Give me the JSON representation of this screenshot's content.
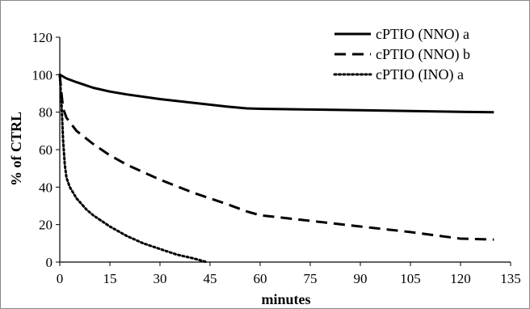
{
  "chart_data": {
    "type": "line",
    "title": "",
    "xlabel": "minutes",
    "ylabel": "% of CTRL",
    "xlim": [
      0,
      135
    ],
    "ylim": [
      0,
      120
    ],
    "xticks": [
      0,
      15,
      30,
      45,
      60,
      75,
      90,
      105,
      120,
      135
    ],
    "yticks": [
      0,
      20,
      40,
      60,
      80,
      100,
      120
    ],
    "grid": false,
    "legend_position": "top-right",
    "series": [
      {
        "name": "cPTIO (NNO) a",
        "style": "solid",
        "color": "#000000",
        "x": [
          0,
          2,
          5,
          10,
          15,
          20,
          30,
          40,
          50,
          56,
          60,
          75,
          90,
          105,
          120,
          130
        ],
        "y": [
          100,
          98,
          96,
          93,
          91,
          89.5,
          87,
          85,
          83,
          82,
          81.8,
          81.4,
          81,
          80.6,
          80.2,
          80
        ]
      },
      {
        "name": "cPTIO (NNO) b",
        "style": "dashed",
        "color": "#000000",
        "x": [
          0,
          0.5,
          1,
          2,
          5,
          10,
          15,
          20,
          30,
          40,
          50,
          56,
          60,
          75,
          90,
          105,
          120,
          130
        ],
        "y": [
          100,
          90,
          82,
          77,
          70,
          63,
          57,
          52,
          44,
          37,
          31,
          27,
          25,
          22,
          19,
          16,
          12.5,
          12
        ]
      },
      {
        "name": "cPTIO (INO) a",
        "style": "dotted",
        "color": "#000000",
        "x": [
          0,
          0.5,
          1,
          1.5,
          2,
          3,
          5,
          8,
          10,
          15,
          20,
          25,
          30,
          35,
          40,
          44
        ],
        "y": [
          100,
          85,
          65,
          52,
          45,
          40,
          34,
          28,
          25,
          19,
          14,
          10,
          7,
          4,
          2,
          0
        ]
      }
    ]
  }
}
